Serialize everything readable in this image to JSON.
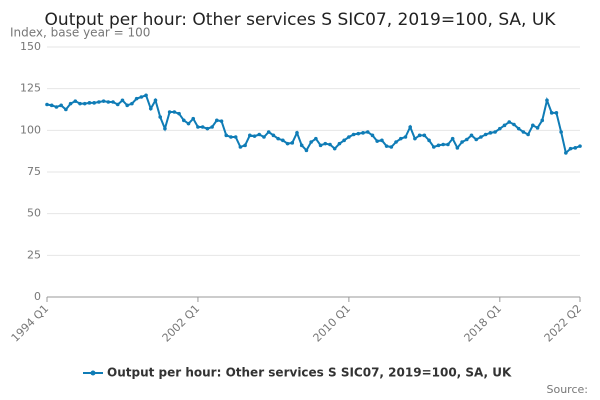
{
  "chart_data": {
    "type": "line",
    "title": "Output per hour: Other services S SIC07, 2019=100, SA, UK",
    "subtitle": "Index, base year = 100",
    "source": "Source:",
    "categories": [
      "1994 Q1",
      null,
      null,
      null,
      null,
      null,
      null,
      null,
      null,
      null,
      null,
      null,
      null,
      null,
      null,
      null,
      null,
      null,
      null,
      null,
      null,
      null,
      null,
      null,
      null,
      null,
      null,
      null,
      null,
      null,
      null,
      null,
      "2002 Q1",
      null,
      null,
      null,
      null,
      null,
      null,
      null,
      null,
      null,
      null,
      null,
      null,
      null,
      null,
      null,
      null,
      null,
      null,
      null,
      null,
      null,
      null,
      null,
      null,
      null,
      null,
      null,
      null,
      null,
      null,
      null,
      "2010 Q1",
      null,
      null,
      null,
      null,
      null,
      null,
      null,
      null,
      null,
      null,
      null,
      null,
      null,
      null,
      null,
      null,
      null,
      null,
      null,
      null,
      null,
      null,
      null,
      null,
      null,
      null,
      null,
      null,
      null,
      null,
      null,
      "2018 Q1",
      null,
      null,
      null,
      null,
      null,
      null,
      null,
      null,
      null,
      null,
      null,
      null,
      null,
      null,
      null,
      null,
      "2022 Q2"
    ],
    "series": [
      {
        "name": "Output per hour: Other services S SIC07, 2019=100, SA, UK",
        "color": "#0f7cb6",
        "values": [
          115.5,
          115,
          114,
          115,
          112.5,
          116,
          117.5,
          116,
          116,
          116.5,
          116.5,
          117,
          117.5,
          117,
          117,
          115.5,
          118,
          115,
          116,
          119,
          120,
          121,
          113,
          118,
          108,
          101,
          111,
          111,
          110,
          106,
          104,
          107,
          102,
          102,
          101,
          102,
          106,
          105.5,
          97,
          96,
          96,
          90,
          91,
          97,
          96.5,
          97.5,
          96,
          99,
          97,
          95,
          94,
          92,
          92.5,
          98.5,
          91,
          88,
          93,
          95,
          91,
          92,
          91.5,
          89,
          92,
          94,
          96,
          97.5,
          98,
          98.5,
          99,
          97,
          93.5,
          94,
          90.5,
          90,
          93,
          95,
          96,
          102,
          95,
          97,
          97,
          94,
          90,
          91,
          91.5,
          91.5,
          95,
          89.5,
          93,
          94.5,
          97,
          94.5,
          96,
          97.5,
          98.5,
          99,
          101,
          103,
          105,
          103.5,
          101,
          99,
          97.5,
          103,
          101.5,
          106,
          118,
          110.5,
          110.5,
          99,
          86.5,
          89,
          89.5,
          90.5
        ]
      }
    ],
    "ylim": [
      0,
      150
    ],
    "yticks": [
      0,
      25,
      50,
      75,
      100,
      125,
      150
    ],
    "grid": true,
    "legend": "bottom"
  }
}
